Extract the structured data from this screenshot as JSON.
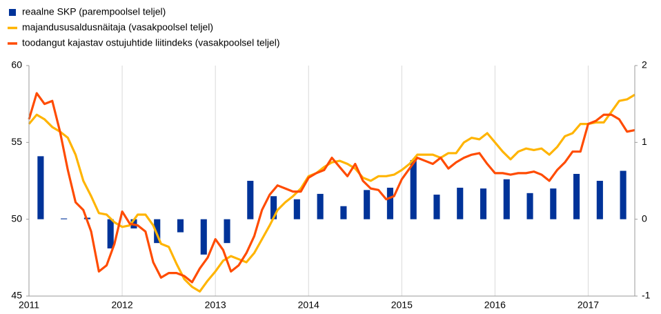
{
  "chart_data": {
    "type": "bar_line",
    "xlim": [
      2011,
      2017.5
    ],
    "xticks": [
      2011,
      2012,
      2013,
      2014,
      2015,
      2016,
      2017
    ],
    "ylim": [
      45,
      60
    ],
    "yticks": [
      45,
      50,
      55,
      60
    ],
    "y2lim": [
      -1,
      2
    ],
    "y2ticks": [
      -1,
      0,
      1,
      2
    ],
    "grid": "x",
    "x": [
      2011,
      2011.083,
      2011.167,
      2011.25,
      2011.333,
      2011.417,
      2011.5,
      2011.583,
      2011.667,
      2011.75,
      2011.833,
      2011.917,
      2012,
      2012.083,
      2012.167,
      2012.25,
      2012.333,
      2012.417,
      2012.5,
      2012.583,
      2012.667,
      2012.75,
      2012.833,
      2012.917,
      2013,
      2013.083,
      2013.167,
      2013.25,
      2013.333,
      2013.417,
      2013.5,
      2013.583,
      2013.667,
      2013.75,
      2013.833,
      2013.917,
      2014,
      2014.083,
      2014.167,
      2014.25,
      2014.333,
      2014.417,
      2014.5,
      2014.583,
      2014.667,
      2014.75,
      2014.833,
      2014.917,
      2015,
      2015.083,
      2015.167,
      2015.25,
      2015.333,
      2015.417,
      2015.5,
      2015.583,
      2015.667,
      2015.75,
      2015.833,
      2015.917,
      2016,
      2016.083,
      2016.167,
      2016.25,
      2016.333,
      2016.417,
      2016.5,
      2016.583,
      2016.667,
      2016.75,
      2016.833,
      2016.917,
      2017,
      2017.083,
      2017.167,
      2017.25,
      2017.333,
      2017.417,
      2017.5
    ],
    "series": [
      {
        "name": "reaalne SKP (parempoolsel teljel)",
        "type": "bar",
        "axis": "y2",
        "color": "#003399",
        "x": [
          2011.125,
          2011.375,
          2011.625,
          2011.875,
          2012.125,
          2012.375,
          2012.625,
          2012.875,
          2013.125,
          2013.375,
          2013.625,
          2013.875,
          2014.125,
          2014.375,
          2014.625,
          2014.875,
          2015.125,
          2015.375,
          2015.625,
          2015.875,
          2016.125,
          2016.375,
          2016.625,
          2016.875,
          2017.125,
          2017.375
        ],
        "values": [
          0.82,
          0.01,
          0.02,
          -0.38,
          -0.12,
          -0.31,
          -0.17,
          -0.46,
          -0.31,
          0.5,
          0.3,
          0.26,
          0.33,
          0.17,
          0.38,
          0.41,
          0.77,
          0.32,
          0.41,
          0.4,
          0.52,
          0.34,
          0.4,
          0.59,
          0.5,
          0.63
        ]
      },
      {
        "name": "majandususaldusnäitaja (vasakpoolsel teljel)",
        "type": "line",
        "color": "#ffb400",
        "values": [
          56.2,
          56.8,
          56.5,
          56.0,
          55.7,
          55.3,
          54.2,
          52.5,
          51.5,
          50.4,
          50.3,
          49.8,
          49.5,
          49.6,
          50.3,
          50.3,
          49.6,
          48.4,
          48.2,
          47.1,
          46.1,
          45.6,
          45.3,
          46.0,
          46.6,
          47.3,
          47.6,
          47.4,
          47.2,
          47.8,
          48.7,
          49.6,
          50.6,
          51.1,
          51.5,
          52.0,
          52.8,
          53.0,
          53.4,
          53.7,
          53.8,
          53.6,
          53.3,
          52.7,
          52.5,
          52.8,
          52.8,
          52.9,
          53.2,
          53.6,
          54.2,
          54.2,
          54.2,
          54.0,
          54.3,
          54.3,
          55.0,
          55.3,
          55.2,
          55.6,
          55.0,
          54.4,
          53.9,
          54.4,
          54.6,
          54.5,
          54.6,
          54.2,
          54.7,
          55.4,
          55.6,
          56.2,
          56.2,
          56.3,
          56.3,
          57.0,
          57.7,
          57.8,
          58.1
        ]
      },
      {
        "name": "toodangut kajastav ostujuhtide liitindeks (vasakpoolsel teljel)",
        "type": "line",
        "color": "#ff4b00",
        "values": [
          56.5,
          58.2,
          57.5,
          57.7,
          55.7,
          53.2,
          51.1,
          50.6,
          49.2,
          46.6,
          47.0,
          48.4,
          50.5,
          49.7,
          49.6,
          49.2,
          47.2,
          46.2,
          46.5,
          46.5,
          46.3,
          45.9,
          46.8,
          47.5,
          48.7,
          48.0,
          46.6,
          47.0,
          47.8,
          48.9,
          50.6,
          51.6,
          52.2,
          52.0,
          51.8,
          51.8,
          52.7,
          53.0,
          53.2,
          54.0,
          53.4,
          52.8,
          53.6,
          52.5,
          52.0,
          51.9,
          51.3,
          51.5,
          52.6,
          53.3,
          54.0,
          53.8,
          53.6,
          54.0,
          53.3,
          53.7,
          54.0,
          54.2,
          54.3,
          53.6,
          53.0,
          53.0,
          52.9,
          53.0,
          53.0,
          53.1,
          52.9,
          52.5,
          53.2,
          53.7,
          54.4,
          54.4,
          56.2,
          56.4,
          56.8,
          56.8,
          56.5,
          55.7,
          55.8
        ]
      }
    ]
  }
}
